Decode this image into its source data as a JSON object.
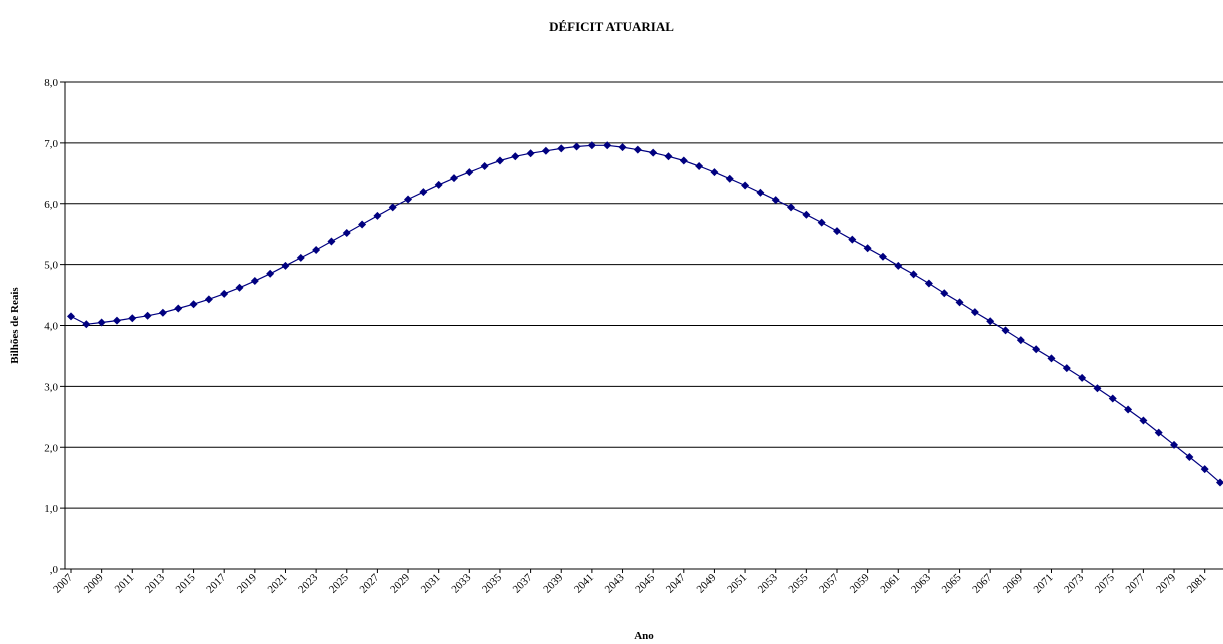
{
  "chart_data": {
    "type": "line",
    "title": "DÉFICIT ATUARIAL",
    "xlabel": "Ano",
    "ylabel": "Bilhões de Reais",
    "ylim": [
      0,
      8
    ],
    "yticks": [
      ",0",
      "1,0",
      "2,0",
      "3,0",
      "4,0",
      "5,0",
      "6,0",
      "7,0",
      "8,0"
    ],
    "xtick_labels": [
      "2007",
      "2009",
      "2011",
      "2013",
      "2015",
      "2017",
      "2019",
      "2021",
      "2023",
      "2025",
      "2027",
      "2029",
      "2031",
      "2033",
      "2035",
      "2037",
      "2039",
      "2041",
      "2043",
      "2045",
      "2047",
      "2049",
      "2051",
      "2053",
      "2055",
      "2057",
      "2059",
      "2061",
      "2063",
      "2065",
      "2067",
      "2069",
      "2071",
      "2073",
      "2075",
      "2077",
      "2079",
      "2081"
    ],
    "grid": "horizontal",
    "legend": "none",
    "colors": {
      "series": "#000080",
      "line": "#000080",
      "grid": "#000000"
    },
    "series": [
      {
        "x": [
          2007,
          2008,
          2009,
          2010,
          2011,
          2012,
          2013,
          2014,
          2015,
          2016,
          2017,
          2018,
          2019,
          2020,
          2021,
          2022,
          2023,
          2024,
          2025,
          2026,
          2027,
          2028,
          2029,
          2030,
          2031,
          2032,
          2033,
          2034,
          2035,
          2036,
          2037,
          2038,
          2039,
          2040,
          2041,
          2042,
          2043,
          2044,
          2045,
          2046,
          2047,
          2048,
          2049,
          2050,
          2051,
          2052,
          2053,
          2054,
          2055,
          2056,
          2057,
          2058,
          2059,
          2060,
          2061,
          2062,
          2063,
          2064,
          2065,
          2066,
          2067,
          2068,
          2069,
          2070,
          2071,
          2072,
          2073,
          2074,
          2075,
          2076,
          2077,
          2078,
          2079,
          2080,
          2081,
          2082
        ],
        "values": [
          4.15,
          4.02,
          4.05,
          4.08,
          4.12,
          4.16,
          4.21,
          4.28,
          4.35,
          4.43,
          4.52,
          4.62,
          4.73,
          4.85,
          4.98,
          5.11,
          5.24,
          5.38,
          5.52,
          5.66,
          5.8,
          5.94,
          6.07,
          6.19,
          6.31,
          6.42,
          6.52,
          6.62,
          6.71,
          6.78,
          6.83,
          6.87,
          6.91,
          6.94,
          6.96,
          6.96,
          6.93,
          6.89,
          6.84,
          6.78,
          6.71,
          6.62,
          6.52,
          6.41,
          6.3,
          6.18,
          6.06,
          5.94,
          5.82,
          5.69,
          5.55,
          5.41,
          5.27,
          5.13,
          4.98,
          4.84,
          4.69,
          4.53,
          4.38,
          4.22,
          4.07,
          3.92,
          3.76,
          3.61,
          3.46,
          3.3,
          3.14,
          2.97,
          2.8,
          2.62,
          2.44,
          2.24,
          2.04,
          1.84,
          1.64,
          1.42
        ]
      }
    ]
  }
}
